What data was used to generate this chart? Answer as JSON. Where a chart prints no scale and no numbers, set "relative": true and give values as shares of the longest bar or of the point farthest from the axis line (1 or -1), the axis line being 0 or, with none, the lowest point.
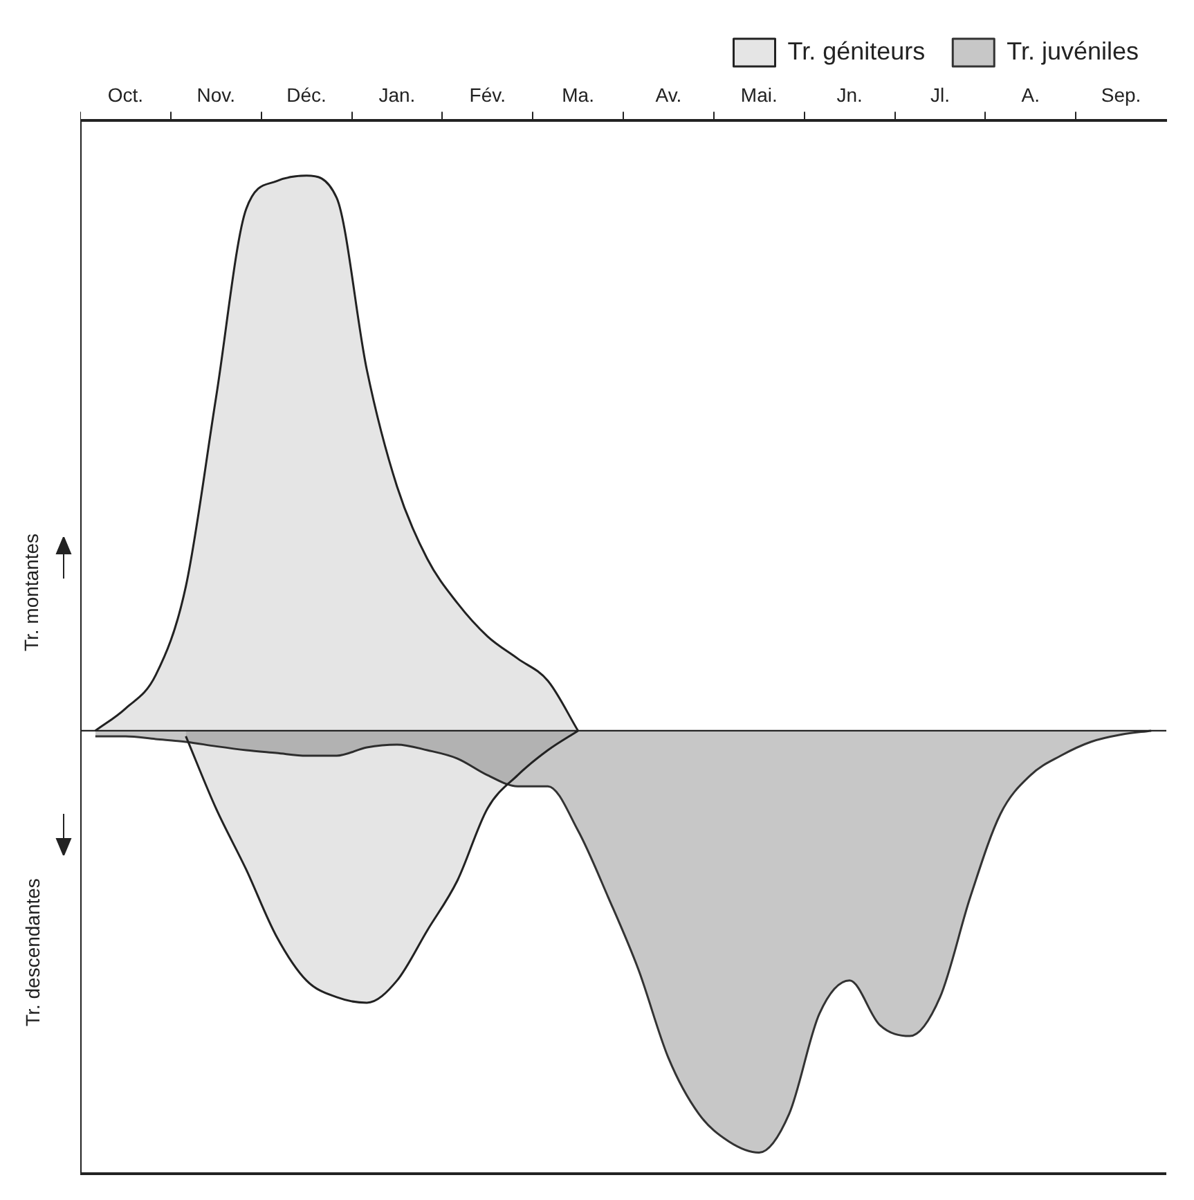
{
  "chart_data": {
    "type": "area",
    "relative": true,
    "legend": "top right",
    "annotations": [
      "Tr. montantes",
      "Tr. descendantes"
    ],
    "categories": [
      null,
      "Oct.",
      null,
      null,
      "Nov.",
      null,
      null,
      "Déc.",
      null,
      null,
      "Jan.",
      null,
      null,
      "Fév.",
      null,
      null,
      "Ma.",
      null,
      null,
      "Av.",
      null,
      null,
      "Mai.",
      null,
      null,
      "Jn.",
      null,
      null,
      "Jl.",
      null,
      null,
      "A.",
      null,
      null,
      "Sep.",
      null
    ],
    "series": [
      {
        "name": "Tr. géniteurs",
        "color": "#222222",
        "values": [
          0,
          0.04,
          0.1,
          0.26,
          0.6,
          0.94,
          0.99,
          1.0,
          0.96,
          0.65,
          0.44,
          0.31,
          0.23,
          0.17,
          0.13,
          0.09,
          0,
          null,
          null,
          null,
          null,
          null,
          null,
          null,
          null,
          null,
          null,
          null,
          null,
          null,
          null,
          null,
          null,
          null,
          null,
          null
        ]
      },
      {
        "color": "#222222",
        "values": [
          null,
          null,
          null,
          -0.01,
          -0.14,
          -0.25,
          -0.37,
          -0.45,
          -0.48,
          -0.49,
          -0.45,
          -0.36,
          -0.27,
          -0.14,
          -0.08,
          -0.035,
          0,
          null,
          null,
          null,
          null,
          null,
          null,
          null,
          null,
          null,
          null,
          null,
          null,
          null,
          null,
          null,
          null,
          null,
          null,
          null
        ]
      },
      {
        "name": "Tr. juvéniles",
        "color": "#333333",
        "values": [
          -0.01,
          -0.01,
          -0.015,
          -0.02,
          -0.028,
          -0.035,
          -0.04,
          -0.045,
          -0.045,
          -0.03,
          -0.025,
          -0.035,
          -0.05,
          -0.08,
          -0.1,
          -0.1,
          -0.18,
          -0.3,
          -0.43,
          -0.59,
          -0.69,
          -0.74,
          -0.76,
          -0.69,
          -0.51,
          -0.45,
          -0.53,
          -0.55,
          -0.48,
          -0.3,
          -0.15,
          -0.08,
          -0.045,
          -0.02,
          -0.007,
          0
        ]
      }
    ]
  }
}
